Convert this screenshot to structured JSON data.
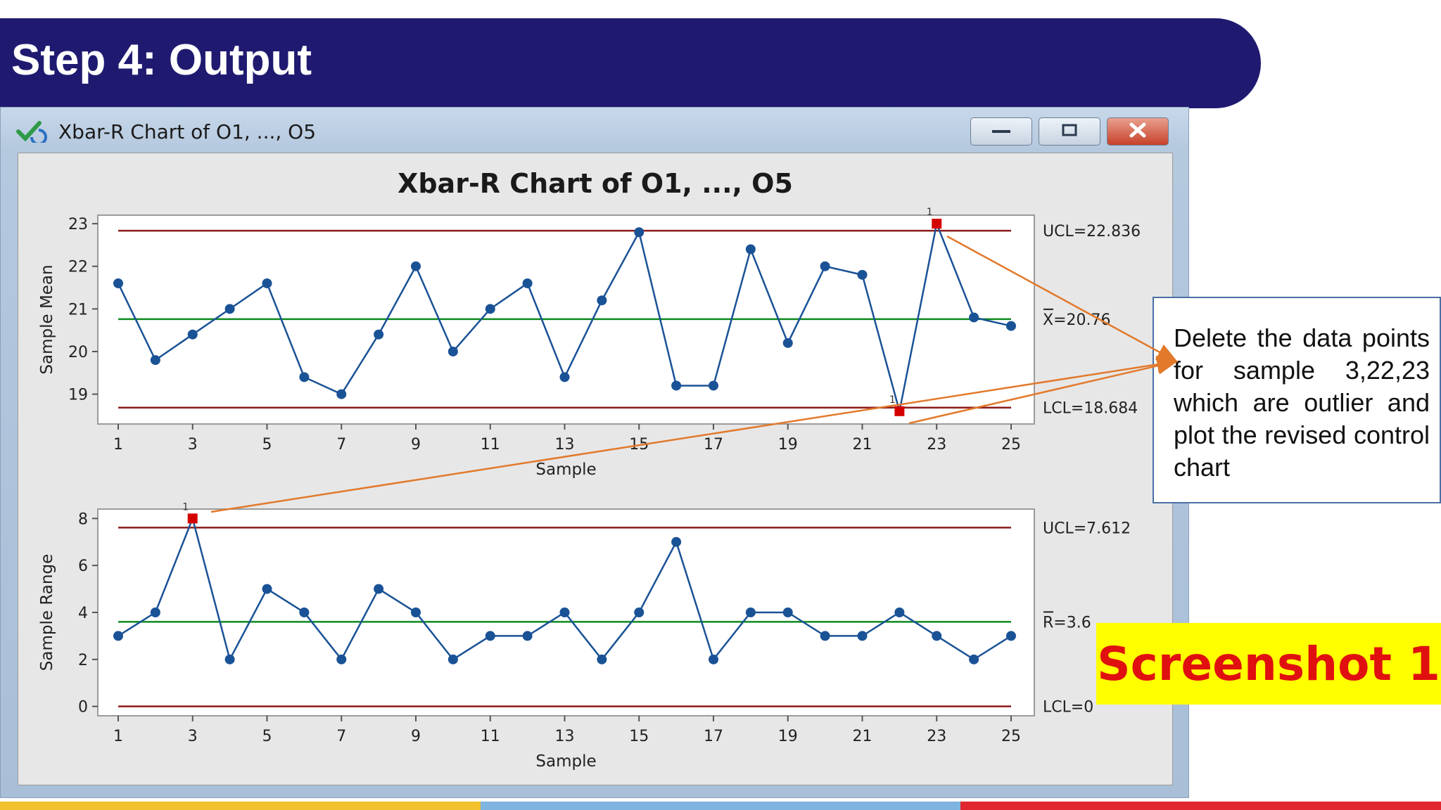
{
  "slide": {
    "title": "Step 4: Output",
    "note": "Delete the data points for sample 3,22,23 which are outlier and plot the revised control chart",
    "screenshot_label": "Screenshot 1"
  },
  "window": {
    "title": "Xbar-R Chart of O1, ..., O5",
    "icon": "minitab-check-icon"
  },
  "colors": {
    "banner": "#1f1a70",
    "series": "#1a5296",
    "center_line": "#0f8a1f",
    "control_limit": "#8b1a1a",
    "flagged_point": "#d40000",
    "annotation_arrow": "#e2792b",
    "highlight_bg": "#ffff00",
    "highlight_text": "#e01010",
    "stripe_yellow": "#f2c12e",
    "stripe_blue": "#7fb3e0",
    "stripe_red": "#e0262f"
  },
  "chart_data": [
    {
      "type": "line",
      "title": "Xbar-R Chart of O1, ..., O5",
      "xlabel": "Sample",
      "ylabel": "Sample Mean",
      "x": [
        1,
        2,
        3,
        4,
        5,
        6,
        7,
        8,
        9,
        10,
        11,
        12,
        13,
        14,
        15,
        16,
        17,
        18,
        19,
        20,
        21,
        22,
        23,
        24,
        25
      ],
      "values": [
        21.6,
        19.8,
        20.4,
        21.0,
        21.6,
        19.4,
        19.0,
        20.4,
        22.0,
        20.0,
        21.0,
        21.6,
        19.4,
        21.2,
        22.8,
        19.2,
        19.2,
        22.4,
        20.2,
        22.0,
        21.8,
        18.6,
        23.0,
        20.8,
        20.6
      ],
      "ylim": [
        18.3,
        23.2
      ],
      "xticks": [
        1,
        3,
        5,
        7,
        9,
        11,
        13,
        15,
        17,
        19,
        21,
        23,
        25
      ],
      "yticks": [
        19,
        20,
        21,
        22,
        23
      ],
      "ucl": 22.836,
      "center": 20.76,
      "lcl": 18.684,
      "ucl_label": "UCL=22.836",
      "center_label": "X=20.76",
      "lcl_label": "LCL=18.684",
      "flagged": [
        22,
        23
      ],
      "flag_label": "1"
    },
    {
      "type": "line",
      "xlabel": "Sample",
      "ylabel": "Sample Range",
      "x": [
        1,
        2,
        3,
        4,
        5,
        6,
        7,
        8,
        9,
        10,
        11,
        12,
        13,
        14,
        15,
        16,
        17,
        18,
        19,
        20,
        21,
        22,
        23,
        24,
        25
      ],
      "values": [
        3,
        4,
        8,
        2,
        5,
        4,
        2,
        5,
        4,
        2,
        3,
        3,
        4,
        2,
        4,
        7,
        2,
        4,
        4,
        3,
        3,
        4,
        3,
        2,
        3
      ],
      "ylim": [
        -0.4,
        8.4
      ],
      "xticks": [
        1,
        3,
        5,
        7,
        9,
        11,
        13,
        15,
        17,
        19,
        21,
        23,
        25
      ],
      "yticks": [
        0,
        2,
        4,
        6,
        8
      ],
      "ucl": 7.612,
      "center": 3.6,
      "lcl": 0,
      "ucl_label": "UCL=7.612",
      "center_label": "R=3.6",
      "lcl_label": "LCL=0",
      "flagged": [
        3
      ],
      "flag_label": "1"
    }
  ]
}
